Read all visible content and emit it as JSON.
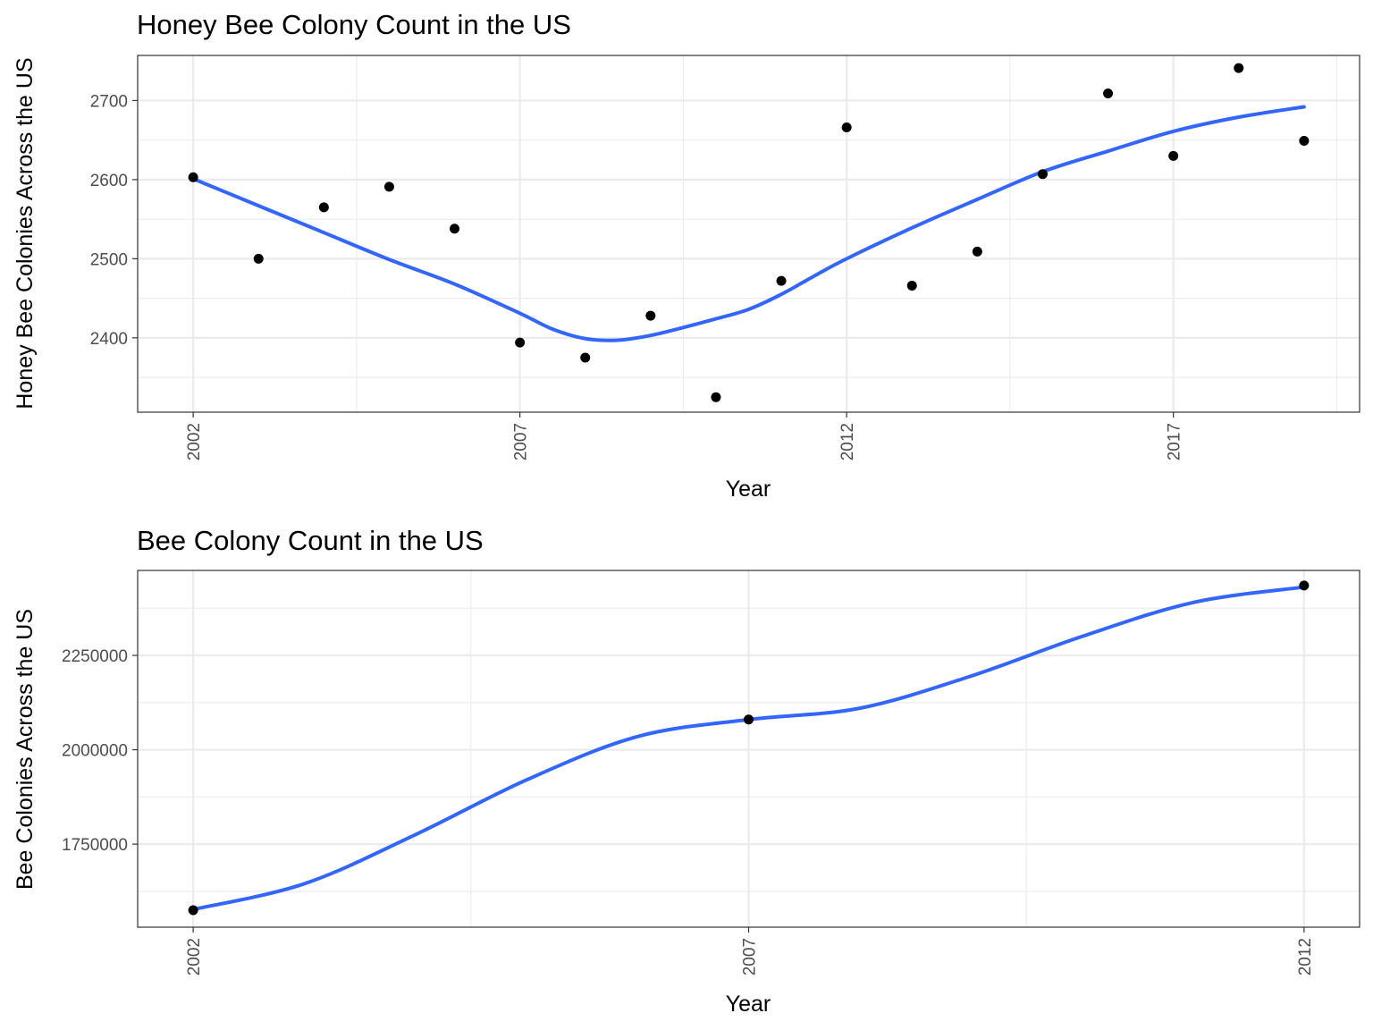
{
  "chart_data": [
    {
      "type": "scatter",
      "title": "Honey Bee Colony Count in the US",
      "xlabel": "Year",
      "ylabel": "Honey Bee Colonies Across the US",
      "x_ticks": [
        2002,
        2007,
        2012,
        2017
      ],
      "x_minor_ticks": [
        2004.5,
        2009.5,
        2014.5,
        2019.5
      ],
      "y_ticks": [
        2400,
        2500,
        2600,
        2700
      ],
      "y_minor_ticks": [
        2350,
        2450,
        2550,
        2650
      ],
      "xlim": [
        2001.15,
        2019.85
      ],
      "ylim": [
        2306,
        2757
      ],
      "grid": true,
      "tick_label_rotation": "vertical",
      "point_color": "#000000",
      "series": [
        {
          "mark": "points",
          "x": [
            2002,
            2003,
            2004,
            2005,
            2006,
            2007,
            2008,
            2009,
            2010,
            2011,
            2012,
            2013,
            2014,
            2015,
            2016,
            2017,
            2018,
            2019
          ],
          "y": [
            2603,
            2500,
            2565,
            2591,
            2538,
            2394,
            2375,
            2428,
            2325,
            2472,
            2666,
            2466,
            2509,
            2607,
            2709,
            2630,
            2741,
            2649
          ]
        },
        {
          "mark": "smooth-line",
          "color": "#3366ff",
          "x": [
            2002,
            2003,
            2004,
            2005,
            2006,
            2007,
            2007.5,
            2008,
            2008.5,
            2009,
            2009.5,
            2010,
            2010.5,
            2011,
            2011.5,
            2012,
            2013,
            2014,
            2015,
            2016,
            2017,
            2018,
            2019
          ],
          "y": [
            2601,
            2567,
            2533,
            2499,
            2468,
            2431,
            2411,
            2399,
            2397,
            2403,
            2413,
            2424,
            2436,
            2455,
            2478,
            2500,
            2539,
            2575,
            2610,
            2636,
            2661,
            2679,
            2692
          ]
        }
      ]
    },
    {
      "type": "scatter",
      "title": "Bee Colony Count in the US",
      "xlabel": "Year",
      "ylabel": "Bee Colonies Across the US",
      "x_ticks": [
        2002,
        2007,
        2012
      ],
      "x_minor_ticks": [
        2004.5,
        2009.5
      ],
      "y_ticks": [
        1750000,
        2000000,
        2250000
      ],
      "y_minor_ticks": [
        1625000,
        1875000,
        2125000,
        2375000
      ],
      "xlim": [
        2001.5,
        2012.5
      ],
      "ylim": [
        1530000,
        2475000
      ],
      "grid": true,
      "tick_label_rotation": "vertical",
      "point_color": "#000000",
      "series": [
        {
          "mark": "points",
          "x": [
            2002,
            2007,
            2012
          ],
          "y": [
            1575000,
            2080000,
            2435000
          ]
        },
        {
          "mark": "smooth-line",
          "color": "#3366ff",
          "x": [
            2002,
            2003,
            2004,
            2005,
            2006,
            2007,
            2008,
            2009,
            2010,
            2011,
            2012
          ],
          "y": [
            1577000,
            1645000,
            1775000,
            1920000,
            2035000,
            2080000,
            2110000,
            2195000,
            2300000,
            2390000,
            2431000
          ]
        }
      ]
    }
  ]
}
